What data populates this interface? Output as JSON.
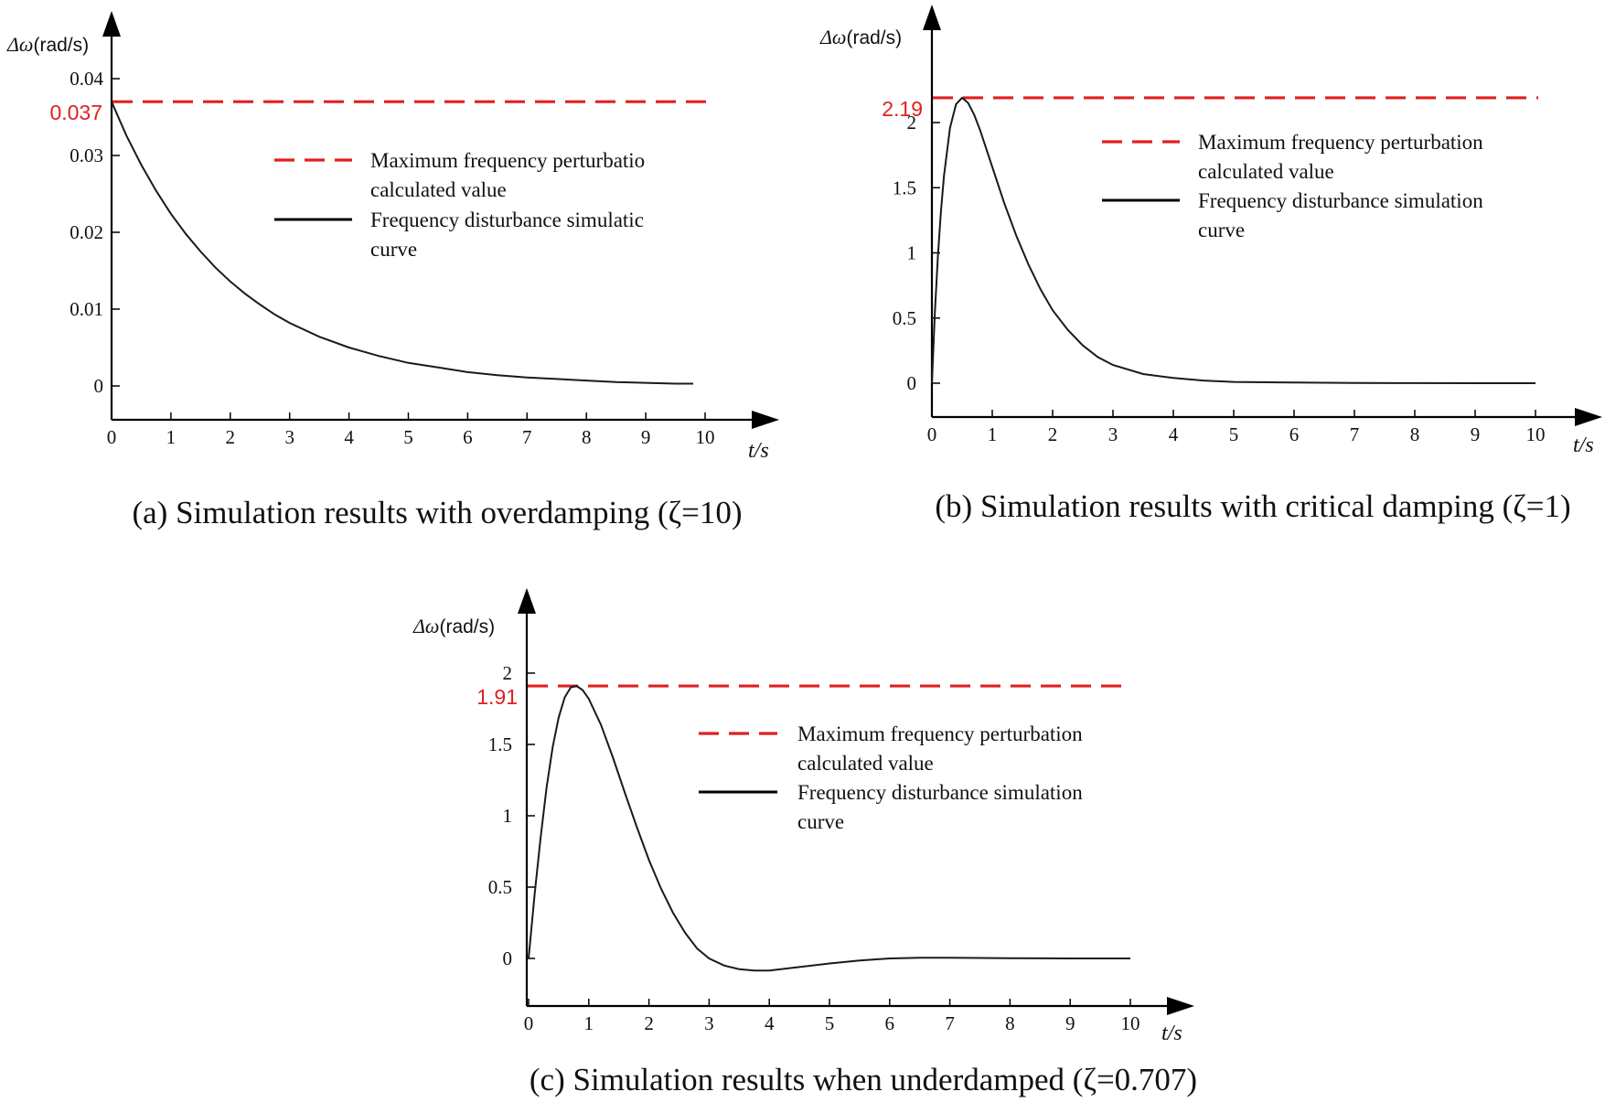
{
  "chart_data": [
    {
      "type": "line",
      "ylabel": {
        "symbol": "Δω",
        "unit": "(rad/s)"
      },
      "xlabel": "t/s",
      "xlim": [
        0,
        10
      ],
      "ylim": [
        0,
        0.04
      ],
      "xticks": [
        "0",
        "1",
        "2",
        "3",
        "4",
        "5",
        "6",
        "7",
        "8",
        "9",
        "10"
      ],
      "yticks": [
        {
          "value": 0,
          "label": "0"
        },
        {
          "value": 0.01,
          "label": "0.01"
        },
        {
          "value": 0.02,
          "label": "0.02"
        },
        {
          "value": 0.03,
          "label": "0.03"
        },
        {
          "value": 0.04,
          "label": "0.04"
        }
      ],
      "reference_line": {
        "value": 0.037,
        "label": "0.037",
        "color": "#e02020",
        "style": "dashed"
      },
      "legend": [
        {
          "lines": [
            "Maximum frequency perturbatio",
            "calculated value"
          ],
          "style": "dashed",
          "color": "#e02020"
        },
        {
          "lines": [
            "Frequency disturbance simulatic",
            "curve"
          ],
          "style": "solid",
          "color": "#000000"
        }
      ],
      "series": [
        {
          "x": [
            0,
            0.25,
            0.5,
            0.75,
            1,
            1.25,
            1.5,
            1.75,
            2,
            2.25,
            2.5,
            2.75,
            3,
            3.5,
            4,
            4.5,
            5,
            5.5,
            6,
            6.5,
            7,
            7.5,
            8,
            8.5,
            9,
            9.5,
            9.8
          ],
          "y": [
            0.037,
            0.0326,
            0.0288,
            0.0254,
            0.0224,
            0.0198,
            0.0175,
            0.0154,
            0.0136,
            0.012,
            0.0106,
            0.0093,
            0.0082,
            0.0064,
            0.005,
            0.0039,
            0.003,
            0.0024,
            0.0018,
            0.0014,
            0.0011,
            0.0009,
            0.0007,
            0.0005,
            0.0004,
            0.0003,
            0.0003
          ],
          "color": "#1a1a1a"
        }
      ],
      "caption": "(a) Simulation results with overdamping (ζ=10)"
    },
    {
      "type": "line",
      "ylabel": {
        "symbol": "Δω",
        "unit": "(rad/s)"
      },
      "xlabel": "t/s",
      "xlim": [
        0,
        10
      ],
      "ylim": [
        0,
        2.19
      ],
      "xticks": [
        "0",
        "1",
        "2",
        "3",
        "4",
        "5",
        "6",
        "7",
        "8",
        "9",
        "10"
      ],
      "yticks": [
        {
          "value": 0,
          "label": "0"
        },
        {
          "value": 0.5,
          "label": "0.5"
        },
        {
          "value": 1,
          "label": "1"
        },
        {
          "value": 1.5,
          "label": "1.5"
        },
        {
          "value": 2,
          "label": "2"
        }
      ],
      "reference_line": {
        "value": 2.19,
        "label": "2.19",
        "color": "#e02020",
        "style": "dashed"
      },
      "legend": [
        {
          "lines": [
            "Maximum frequency perturbation",
            "calculated value"
          ],
          "style": "dashed",
          "color": "#e02020"
        },
        {
          "lines": [
            "Frequency disturbance simulation",
            "curve"
          ],
          "style": "solid",
          "color": "#000000"
        }
      ],
      "series": [
        {
          "x": [
            0,
            0.05,
            0.1,
            0.15,
            0.2,
            0.3,
            0.4,
            0.5,
            0.6,
            0.7,
            0.8,
            1,
            1.2,
            1.4,
            1.6,
            1.8,
            2,
            2.25,
            2.5,
            2.75,
            3,
            3.5,
            4,
            4.5,
            5,
            6,
            7,
            8,
            9,
            10
          ],
          "y": [
            0,
            0.55,
            0.98,
            1.32,
            1.59,
            1.96,
            2.14,
            2.19,
            2.15,
            2.06,
            1.94,
            1.66,
            1.38,
            1.13,
            0.91,
            0.72,
            0.56,
            0.41,
            0.29,
            0.2,
            0.14,
            0.07,
            0.04,
            0.02,
            0.01,
            0.005,
            0.002,
            0.001,
            0.0,
            0.0
          ],
          "color": "#1a1a1a"
        }
      ],
      "caption": "(b) Simulation results with critical damping (ζ=1)"
    },
    {
      "type": "line",
      "ylabel": {
        "symbol": "Δω",
        "unit": "(rad/s)"
      },
      "xlabel": "t/s",
      "xlim": [
        0,
        10
      ],
      "ylim": [
        -0.1,
        2.0
      ],
      "xticks": [
        "0",
        "1",
        "2",
        "3",
        "4",
        "5",
        "6",
        "7",
        "8",
        "9",
        "10"
      ],
      "yticks": [
        {
          "value": 0,
          "label": "0"
        },
        {
          "value": 0.5,
          "label": "0.5"
        },
        {
          "value": 1,
          "label": "1"
        },
        {
          "value": 1.5,
          "label": "1.5"
        },
        {
          "value": 2,
          "label": "2"
        }
      ],
      "reference_line": {
        "value": 1.91,
        "label": "1.91",
        "color": "#e02020",
        "style": "dashed"
      },
      "legend": [
        {
          "lines": [
            "Maximum frequency perturbation",
            "calculated value"
          ],
          "style": "dashed",
          "color": "#e02020"
        },
        {
          "lines": [
            "Frequency disturbance simulation",
            "curve"
          ],
          "style": "solid",
          "color": "#000000"
        }
      ],
      "series": [
        {
          "x": [
            0,
            0.1,
            0.2,
            0.3,
            0.4,
            0.5,
            0.6,
            0.7,
            0.8,
            0.9,
            1,
            1.2,
            1.4,
            1.6,
            1.8,
            2,
            2.2,
            2.4,
            2.6,
            2.8,
            3,
            3.25,
            3.5,
            3.75,
            4,
            4.5,
            5,
            5.5,
            6,
            6.5,
            7,
            7.5,
            8,
            9,
            10
          ],
          "y": [
            0,
            0.45,
            0.85,
            1.2,
            1.48,
            1.69,
            1.83,
            1.9,
            1.91,
            1.88,
            1.82,
            1.64,
            1.41,
            1.16,
            0.92,
            0.69,
            0.49,
            0.32,
            0.18,
            0.07,
            0.0,
            -0.05,
            -0.075,
            -0.085,
            -0.085,
            -0.06,
            -0.035,
            -0.015,
            0.0,
            0.005,
            0.005,
            0.003,
            0.002,
            0.0,
            0.0
          ],
          "color": "#1a1a1a"
        }
      ],
      "caption": "(c) Simulation results when underdamped (ζ=0.707)"
    }
  ]
}
